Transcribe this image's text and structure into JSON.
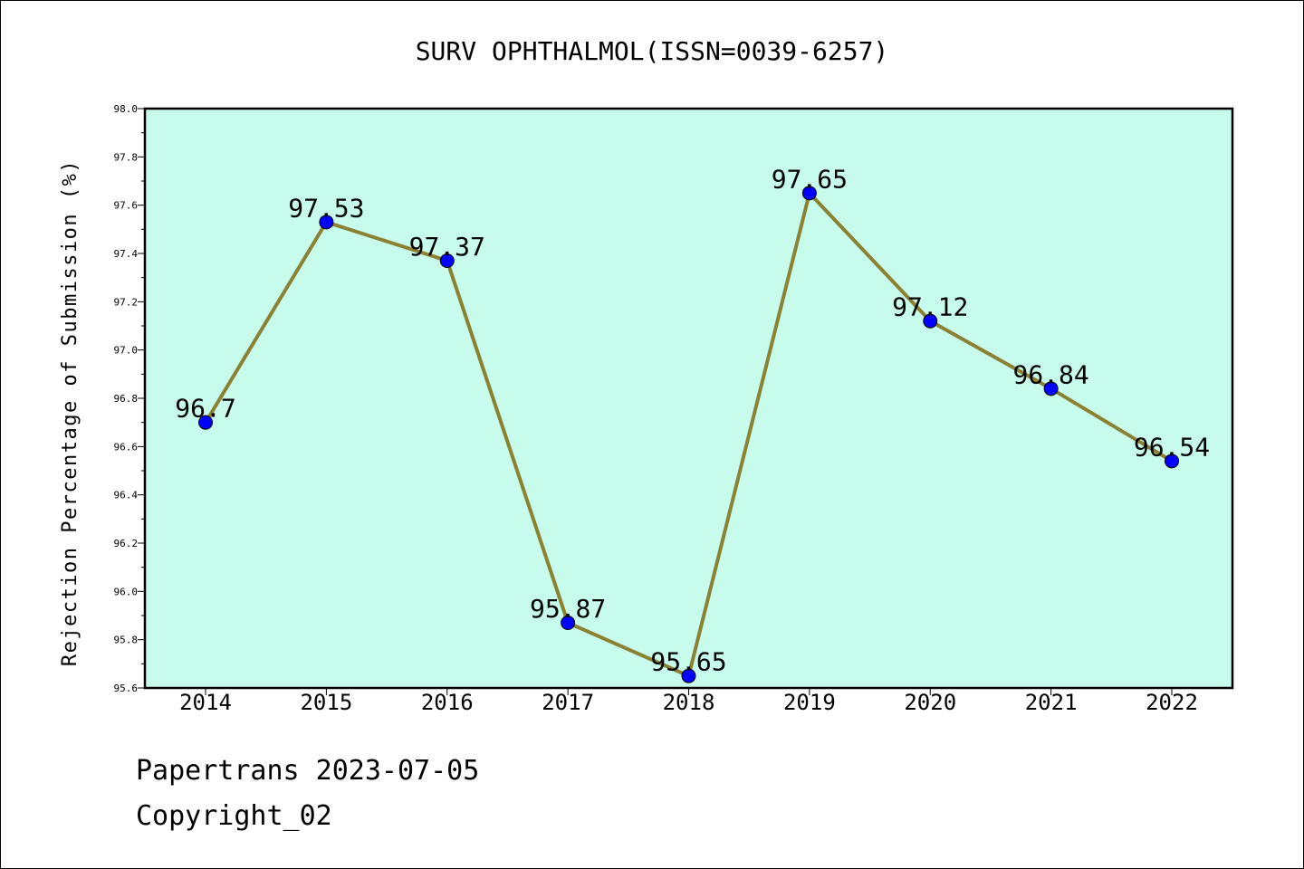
{
  "chart_data": {
    "type": "line",
    "title": "SURV OPHTHALMOL(ISSN=0039-6257)",
    "xlabel": "",
    "ylabel": "Rejection Percentage of Submission (%)",
    "categories": [
      "2014",
      "2015",
      "2016",
      "2017",
      "2018",
      "2019",
      "2020",
      "2021",
      "2022"
    ],
    "values": [
      96.7,
      97.53,
      97.37,
      95.87,
      95.65,
      97.65,
      97.12,
      96.84,
      96.54
    ],
    "data_labels": [
      "96.7",
      "97.53",
      "97.37",
      "95.87",
      "95.65",
      "97.65",
      "97.12",
      "96.84",
      "96.54"
    ],
    "ylim": [
      95.6,
      98.0
    ],
    "yticks": [
      "95.6",
      "95.8",
      "96.0",
      "96.2",
      "96.4",
      "96.6",
      "96.8",
      "97.0",
      "97.2",
      "97.4",
      "97.6",
      "97.8",
      "98.0"
    ],
    "grid": false,
    "colors": {
      "plot_background": "#c7fcec",
      "line": "#8b8132",
      "marker": "#0000ff"
    }
  },
  "footer": {
    "line1": "Papertrans 2023-07-05",
    "line2": "Copyright_02"
  }
}
